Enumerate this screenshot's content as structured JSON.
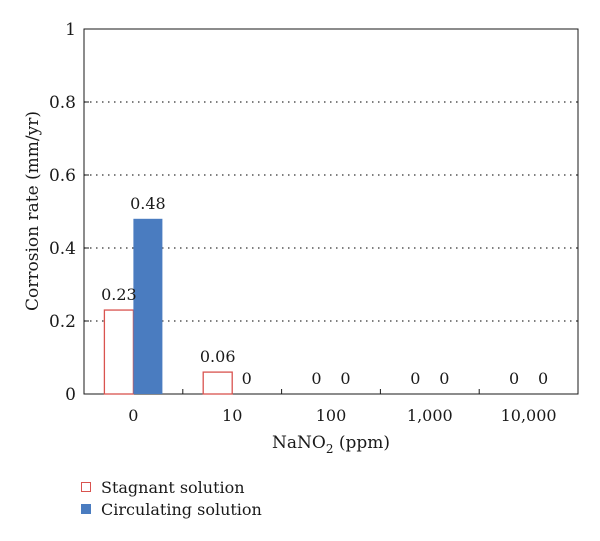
{
  "chart_data": {
    "type": "bar",
    "xlabel_parts": [
      "NaNO",
      "2",
      " (ppm)"
    ],
    "ylabel": "Corrosion rate (mm/yr)",
    "categories": [
      "0",
      "10",
      "100",
      "1,000",
      "10,000"
    ],
    "series": [
      {
        "name": "Stagnant solution",
        "values": [
          0.23,
          0.06,
          0,
          0,
          0
        ],
        "style": "outline",
        "color": "#d9534f"
      },
      {
        "name": "Circulating solution",
        "values": [
          0.48,
          0,
          0,
          0,
          0
        ],
        "style": "filled",
        "color": "#4a7cc0"
      }
    ],
    "value_labels": [
      [
        "0.23",
        "0.06",
        "",
        "",
        ""
      ],
      [
        "0.48",
        "0",
        "0",
        "0",
        "0"
      ]
    ],
    "value_labels_extra": [
      {
        "category": 2,
        "series": 0,
        "text": "0"
      },
      {
        "category": 3,
        "series": 0,
        "text": "0"
      },
      {
        "category": 4,
        "series": 0,
        "text": "0"
      }
    ],
    "ylim": [
      0,
      1
    ],
    "yticks": [
      "0",
      "0.2",
      "0.4",
      "0.6",
      "0.8",
      "1"
    ],
    "grid": "horizontal-dotted",
    "legend_position": "bottom-left"
  }
}
